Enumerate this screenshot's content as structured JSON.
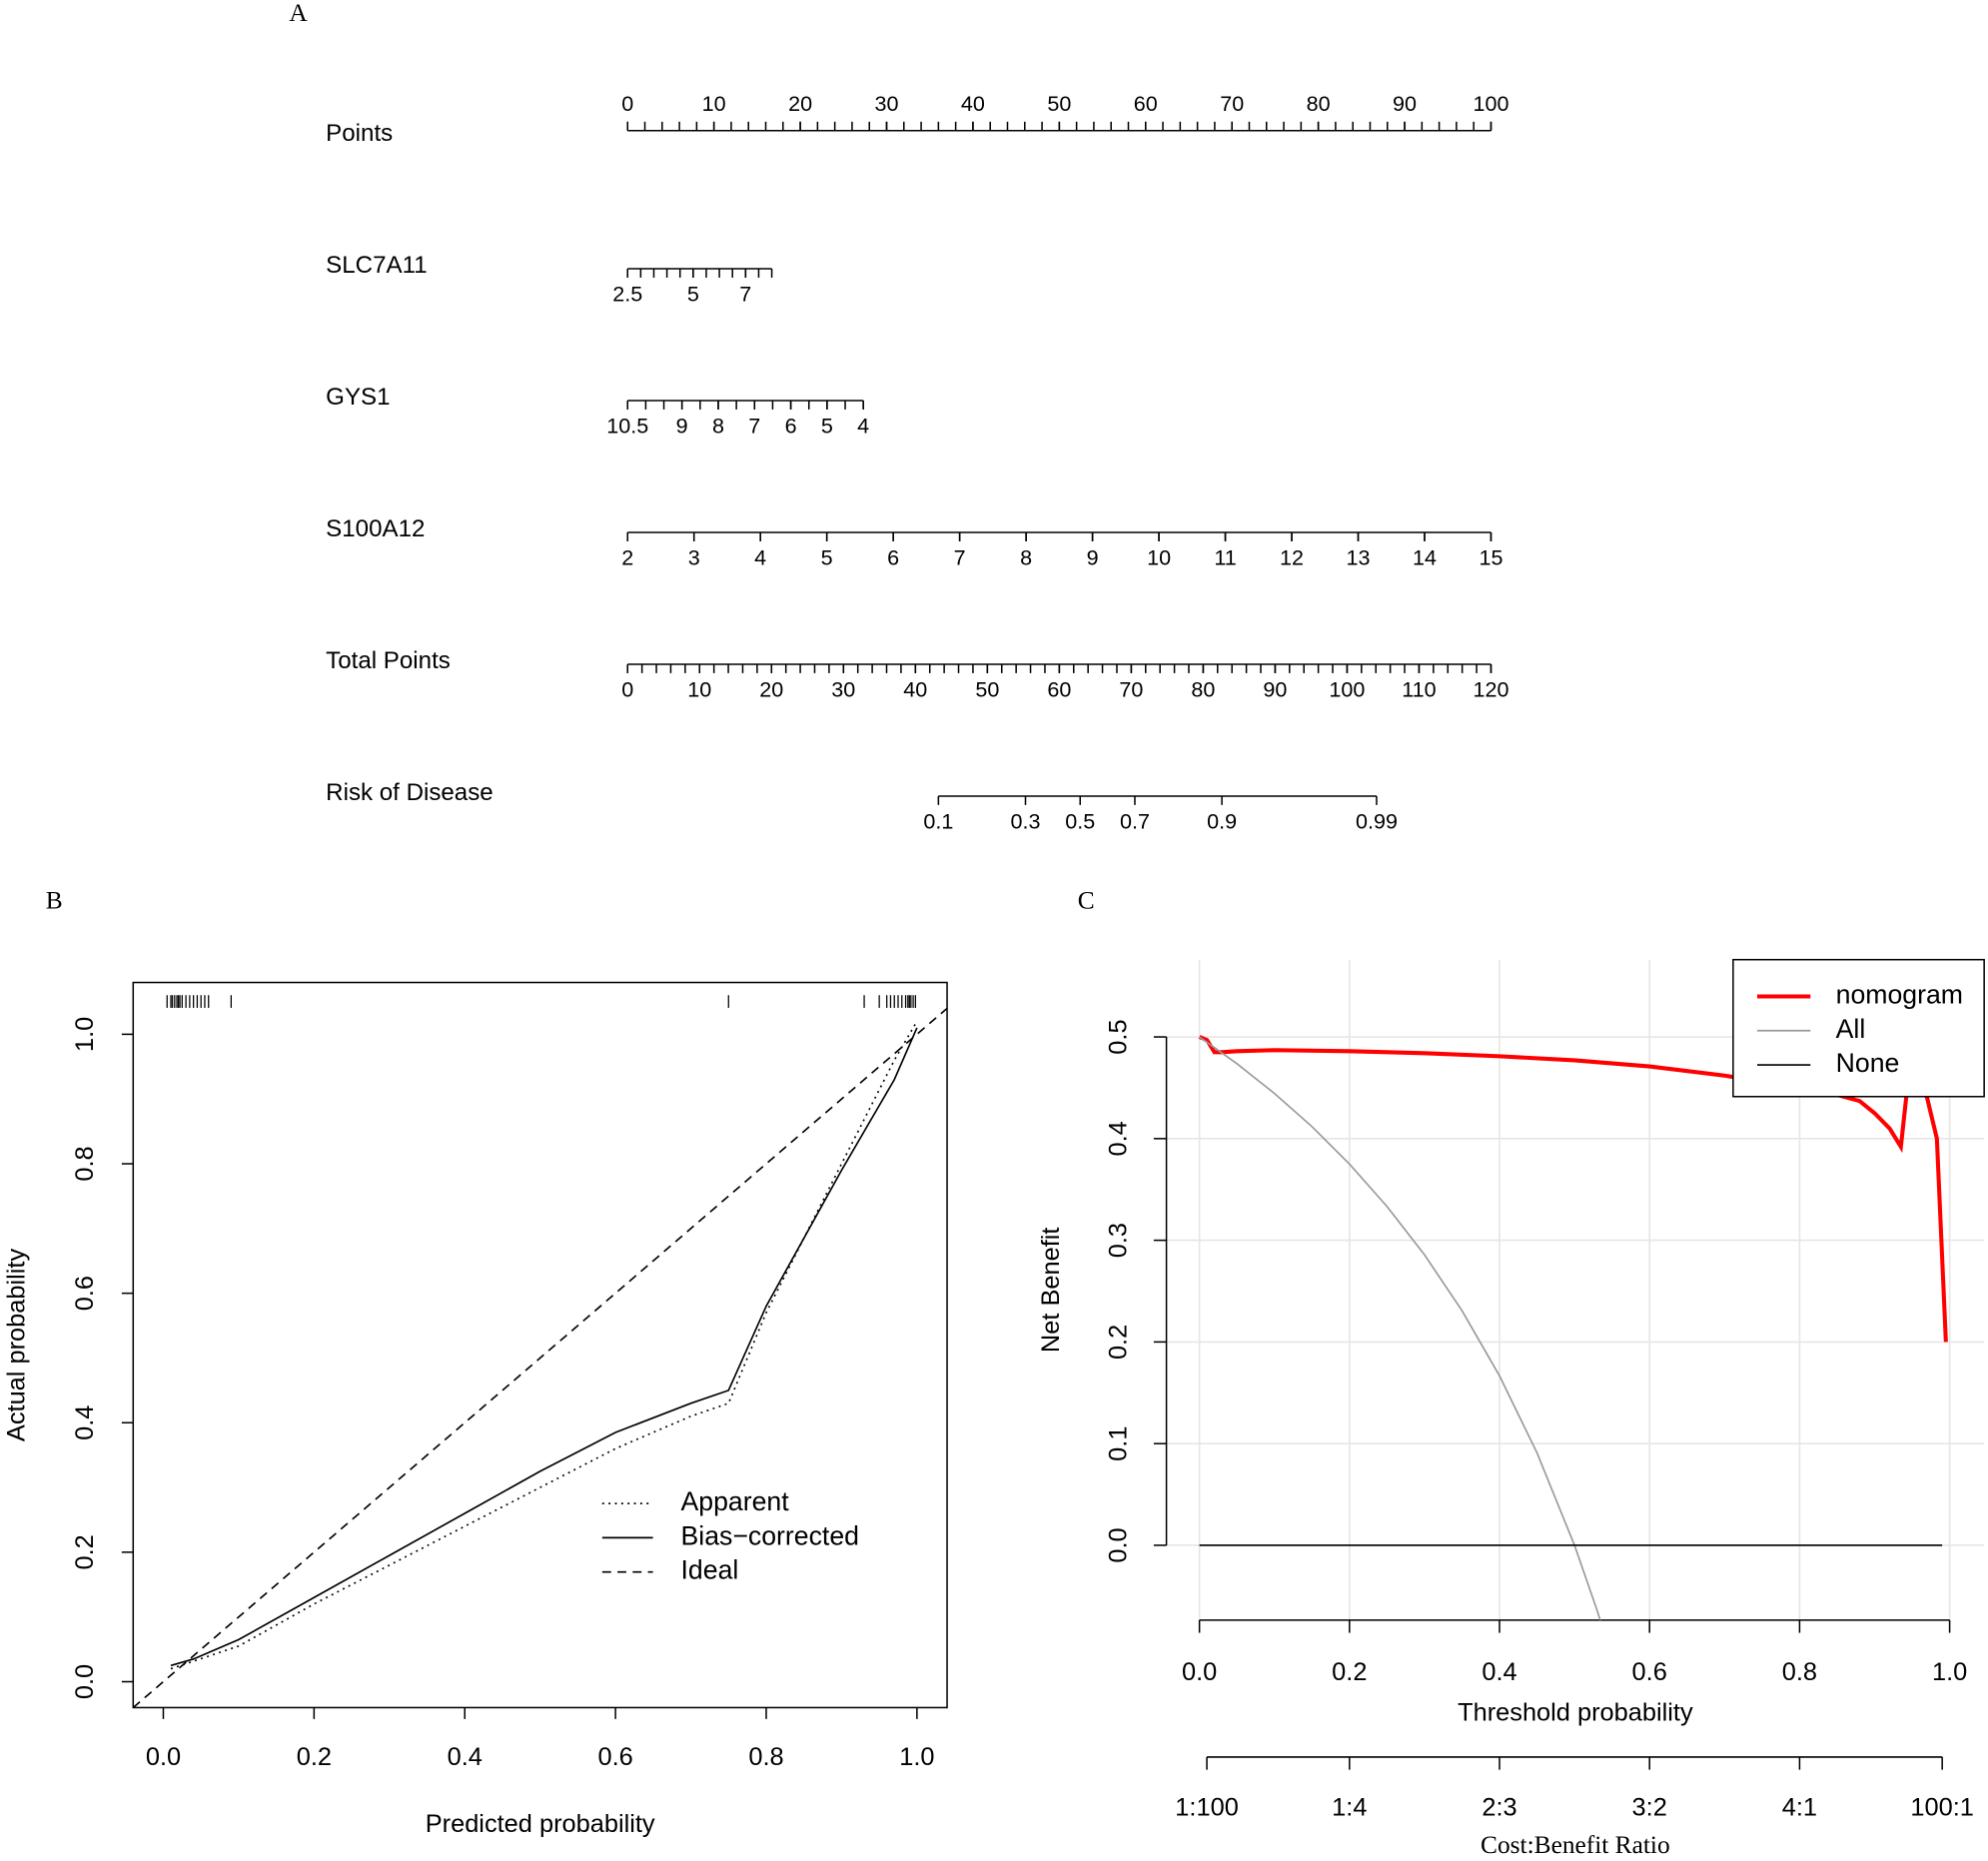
{
  "chart_data": [
    {
      "type": "nomogram",
      "panel": "A",
      "rows": [
        {
          "name": "Points",
          "range": [
            0,
            100
          ],
          "points_range": [
            0,
            100
          ],
          "ticks": [
            0,
            10,
            20,
            30,
            40,
            50,
            60,
            70,
            80,
            90,
            100
          ],
          "minor_step": 2
        },
        {
          "name": "SLC7A11",
          "range": [
            2.5,
            8
          ],
          "points_range": [
            0,
            16.7
          ],
          "ticks": [
            2.5,
            5,
            7
          ],
          "minor_step": 0.5
        },
        {
          "name": "GYS1",
          "range": [
            10.5,
            4
          ],
          "points_range": [
            0,
            27.3
          ],
          "ticks": [
            10.5,
            9,
            8,
            7,
            6,
            5,
            4
          ],
          "minor_step": 0.5
        },
        {
          "name": "S100A12",
          "range": [
            2,
            15
          ],
          "points_range": [
            0,
            100
          ],
          "ticks": [
            2,
            3,
            4,
            5,
            6,
            7,
            8,
            9,
            10,
            11,
            12,
            13,
            14,
            15
          ],
          "minor_step": 1
        },
        {
          "name": "Total Points",
          "range": [
            0,
            120
          ],
          "points_range": [
            0,
            100
          ],
          "ticks": [
            0,
            10,
            20,
            30,
            40,
            50,
            60,
            70,
            80,
            90,
            100,
            110,
            120
          ],
          "minor_step": 2
        },
        {
          "name": "Risk of Disease",
          "ticks": [
            0.1,
            0.3,
            0.5,
            0.7,
            0.9,
            0.99
          ],
          "tick_total_points": [
            43.2,
            55.3,
            62.9,
            70.5,
            82.6,
            104.1
          ]
        }
      ]
    },
    {
      "type": "line",
      "panel": "B",
      "xlabel": "Predicted probability",
      "ylabel": "Actual probability",
      "xlim": [
        -0.04,
        1.04
      ],
      "ylim": [
        -0.04,
        1.08
      ],
      "xticks": [
        {
          "value": 0,
          "label": "0.0"
        },
        0.2,
        0.4,
        0.6,
        0.8,
        {
          "value": 1,
          "label": "1.0"
        }
      ],
      "yticks": [
        {
          "value": 0,
          "label": "0.0"
        },
        0.2,
        0.4,
        0.6,
        0.8,
        {
          "value": 1,
          "label": "1.0"
        }
      ],
      "box": true,
      "legend": "bottom-right",
      "rug": [
        0.005,
        0.01,
        0.012,
        0.015,
        0.018,
        0.02,
        0.022,
        0.025,
        0.03,
        0.035,
        0.04,
        0.045,
        0.05,
        0.055,
        0.06,
        0.09,
        0.75,
        0.93,
        0.95,
        0.96,
        0.965,
        0.97,
        0.975,
        0.98,
        0.985,
        0.988,
        0.99,
        0.992,
        0.995,
        0.998
      ],
      "series": [
        {
          "name": "Apparent",
          "color": "#000000",
          "linestyle": "dotted",
          "x": [
            0.01,
            0.1,
            0.2,
            0.3,
            0.4,
            0.5,
            0.6,
            0.7,
            0.75,
            0.8,
            0.9,
            0.97,
            1.0
          ],
          "values": [
            0.02,
            0.055,
            0.12,
            0.18,
            0.24,
            0.3,
            0.36,
            0.41,
            0.43,
            0.57,
            0.8,
            0.96,
            1.02
          ]
        },
        {
          "name": "Bias−corrected",
          "color": "#000000",
          "linestyle": "solid",
          "x": [
            0.01,
            0.04,
            0.1,
            0.2,
            0.3,
            0.4,
            0.5,
            0.6,
            0.7,
            0.75,
            0.8,
            0.9,
            0.97,
            1.0
          ],
          "values": [
            0.025,
            0.035,
            0.065,
            0.13,
            0.195,
            0.26,
            0.325,
            0.385,
            0.43,
            0.45,
            0.58,
            0.79,
            0.93,
            1.01
          ]
        },
        {
          "name": "Ideal",
          "color": "#000000",
          "linestyle": "dashed",
          "x": [
            -0.04,
            1.04
          ],
          "values": [
            -0.04,
            1.04
          ]
        }
      ]
    },
    {
      "type": "line",
      "panel": "C",
      "xlabel": "Threshold probability",
      "ylabel": "Net Benefit",
      "xlim": [
        -0.044,
        1.046
      ],
      "ylim": [
        -0.0736,
        0.576
      ],
      "xticks": [
        {
          "value": 0,
          "label": "0.0"
        },
        0.2,
        0.4,
        0.6,
        0.8,
        {
          "value": 1,
          "label": "1.0"
        }
      ],
      "yticks": [
        {
          "value": 0,
          "label": "0.0"
        },
        0.1,
        0.2,
        0.3,
        0.4,
        0.5
      ],
      "grid": true,
      "legend": "top-right",
      "x2label": "Cost:Benefit Ratio",
      "x2ticks": [
        {
          "value": 0.0099,
          "label": "1:100"
        },
        {
          "value": 0.2,
          "label": "1:4"
        },
        {
          "value": 0.4,
          "label": "2:3"
        },
        {
          "value": 0.6,
          "label": "3:2"
        },
        {
          "value": 0.8,
          "label": "4:1"
        },
        {
          "value": 0.9901,
          "label": "100:1"
        }
      ],
      "series": [
        {
          "name": "nomogram",
          "color": "#ff0000",
          "linewidth": 3.2,
          "x": [
            0,
            0.01,
            0.02,
            0.03,
            0.05,
            0.1,
            0.2,
            0.3,
            0.4,
            0.5,
            0.6,
            0.7,
            0.8,
            0.85,
            0.88,
            0.9,
            0.92,
            0.935,
            0.945,
            0.96,
            0.97,
            0.983,
            0.995
          ],
          "values": [
            0.5,
            0.497,
            0.485,
            0.485,
            0.486,
            0.487,
            0.486,
            0.484,
            0.481,
            0.477,
            0.471,
            0.462,
            0.45,
            0.443,
            0.437,
            0.425,
            0.41,
            0.392,
            0.46,
            0.46,
            0.44,
            0.4,
            0.2
          ]
        },
        {
          "name": "All",
          "color": "#999999",
          "x": [
            0,
            0.05,
            0.1,
            0.15,
            0.2,
            0.25,
            0.3,
            0.35,
            0.4,
            0.45,
            0.5,
            0.53,
            0.54
          ],
          "values": [
            0.5,
            0.4737,
            0.4444,
            0.4118,
            0.375,
            0.3333,
            0.2857,
            0.2308,
            0.1667,
            0.0909,
            0,
            -0.0638,
            -0.087
          ]
        },
        {
          "name": "None",
          "color": "#000000",
          "x": [
            0,
            0.99
          ],
          "values": [
            0,
            0
          ]
        }
      ]
    }
  ]
}
